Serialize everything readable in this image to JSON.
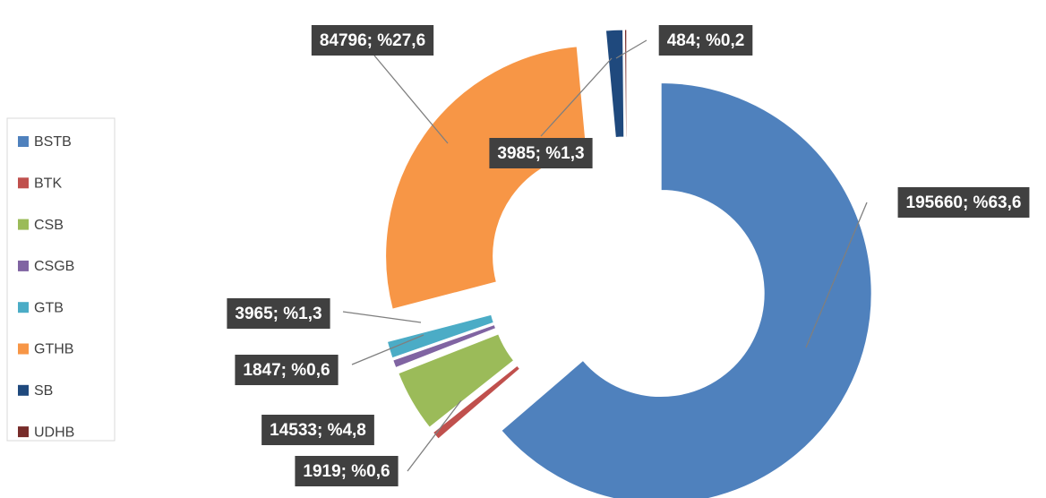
{
  "chart_data": {
    "type": "doughnut",
    "categories": [
      "BSTB",
      "BTK",
      "CSB",
      "CSGB",
      "GTB",
      "GTHB",
      "SB",
      "UDHB"
    ],
    "values": [
      195660,
      1919,
      14533,
      1847,
      3965,
      84796,
      3985,
      484
    ],
    "value_labels": [
      "195660; %63,6",
      "1919; %0,6",
      "14533; %4,8",
      "1847; %0,6",
      "3965; %1,3",
      "84796; %27,6",
      "3985; %1,3",
      "484; %0,2"
    ],
    "colors": [
      "#4f81bd",
      "#c0504d",
      "#9bbb59",
      "#8064a2",
      "#4bacc6",
      "#f79646",
      "#1f497d",
      "#772c2a"
    ],
    "legend": "left"
  }
}
